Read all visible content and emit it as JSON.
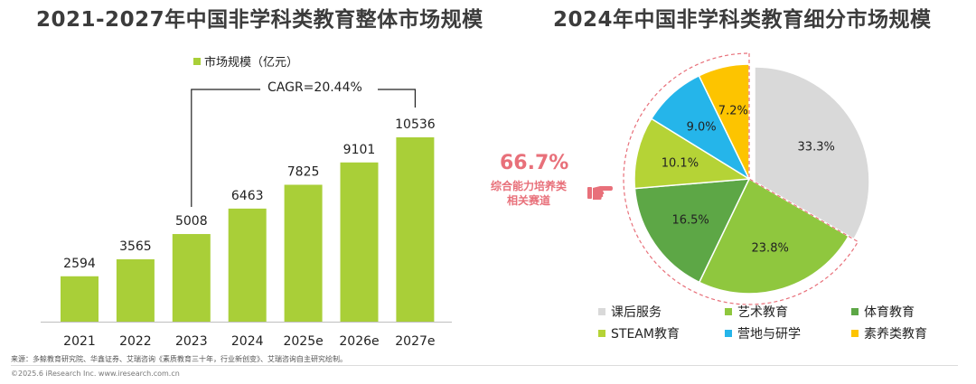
{
  "left_title": "2021-2027年中国非学科类教育整体市场规模",
  "right_title": "2024年中国非学科类教育细分市场规模",
  "cagr_label": "CAGR=20.44%",
  "callout": {
    "percent": "66.7%",
    "line1": "综合能力培养类",
    "line2": "相关赛道"
  },
  "source": "来源：多鲸教育研究院、华鑫证券、艾瑞咨询《素质教育三十年，行业新创变》、艾瑞咨询自主研究绘制。",
  "copyright": "©2025.6 iResearch Inc.  www.iresearch.com.cn",
  "colors": {
    "bar": "#a9cf38",
    "课后服务": "#d9d9d9",
    "艺术教育": "#8fc73e",
    "体育教育": "#5da746",
    "STEAM教育": "#b5d336",
    "营地与研学": "#25b5ea",
    "素养类教育": "#fdc400",
    "accent": "#e8707a"
  },
  "chart_data": [
    {
      "type": "bar",
      "title": "2021-2027年中国非学科类教育整体市场规模",
      "legend": [
        "市场规模（亿元）"
      ],
      "categories": [
        "2021",
        "2022",
        "2023",
        "2024",
        "2025e",
        "2026e",
        "2027e"
      ],
      "series": [
        {
          "name": "市场规模（亿元）",
          "values": [
            2594,
            3565,
            5008,
            6463,
            7825,
            9101,
            10536
          ]
        }
      ],
      "ylim": [
        0,
        10536
      ],
      "grid": false
    },
    {
      "type": "pie",
      "title": "2024年中国非学科类教育细分市场规模",
      "labels": [
        "课后服务",
        "艺术教育",
        "体育教育",
        "STEAM教育",
        "营地与研学",
        "素养类教育"
      ],
      "values": [
        33.3,
        23.8,
        16.5,
        10.1,
        9.0,
        7.2
      ],
      "value_labels": [
        "33.3%",
        "23.8%",
        "16.5%",
        "10.1%",
        "9.0%",
        "7.2%"
      ],
      "legend_position": "bottom"
    }
  ]
}
